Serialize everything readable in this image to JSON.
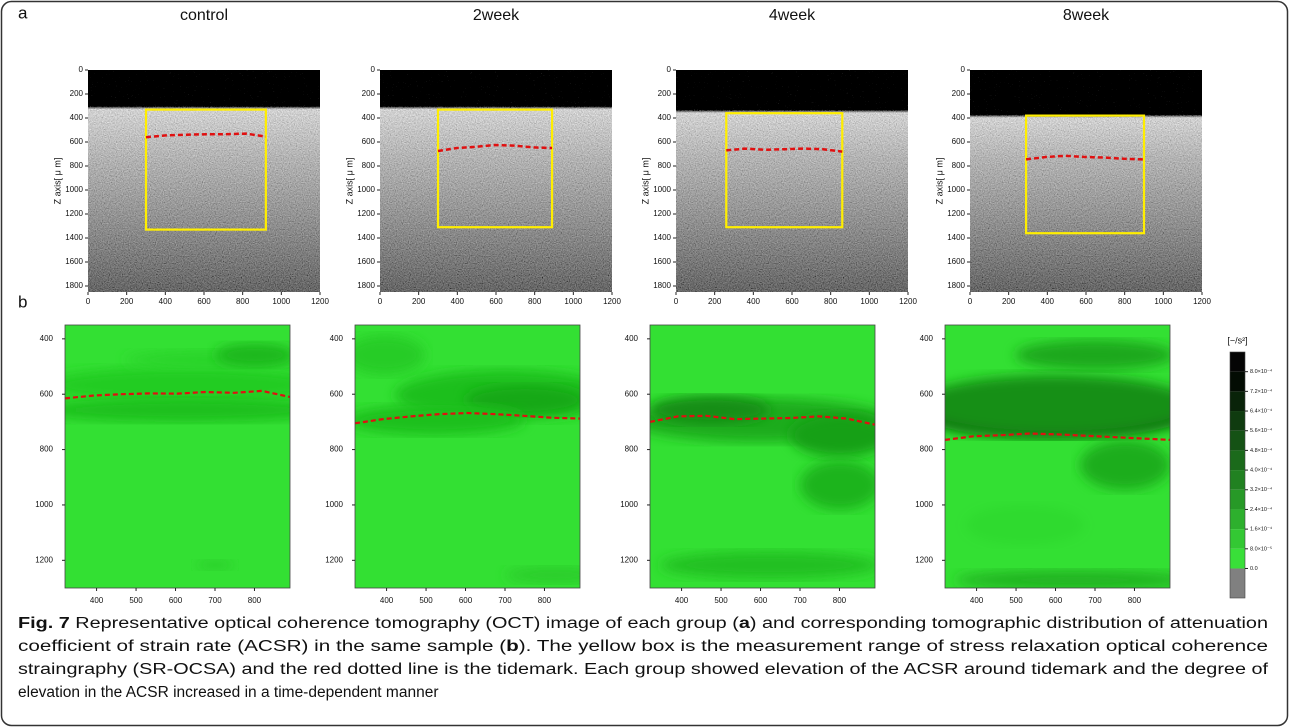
{
  "figure_labels": [
    "a",
    "b"
  ],
  "groups": [
    "control",
    "2week",
    "4week",
    "8week"
  ],
  "oct": {
    "y_label": "Z axis[ μ m]",
    "xlim": [
      0,
      1200
    ],
    "ylim": [
      0,
      1850
    ],
    "xticks": [
      0,
      200,
      400,
      600,
      800,
      1000,
      1200
    ],
    "yticks": [
      0,
      200,
      400,
      600,
      800,
      1000,
      1200,
      1400,
      1600,
      1800
    ]
  },
  "acsr": {
    "xlim": [
      320,
      890
    ],
    "ylim": [
      350,
      1300
    ],
    "xticks": [
      400,
      500,
      600,
      700,
      800
    ],
    "yticks": [
      400,
      600,
      800,
      1000,
      1200
    ]
  },
  "colorbar": {
    "unit": "[−/s²]",
    "lim": [
      -0.00012,
      0.00088
    ],
    "ticks": [
      {
        "value": 0.0008,
        "label": "8.0×10⁻⁴"
      },
      {
        "value": 0.00072,
        "label": "7.2×10⁻⁴"
      },
      {
        "value": 0.00064,
        "label": "6.4×10⁻⁴"
      },
      {
        "value": 0.00056,
        "label": "5.6×10⁻⁴"
      },
      {
        "value": 0.00048,
        "label": "4.8×10⁻⁴"
      },
      {
        "value": 0.0004,
        "label": "4.0×10⁻⁴"
      },
      {
        "value": 0.00032,
        "label": "3.2×10⁻⁴"
      },
      {
        "value": 0.00024,
        "label": "2.4×10⁻⁴"
      },
      {
        "value": 0.00016,
        "label": "1.6×10⁻⁴"
      },
      {
        "value": 8e-05,
        "label": "8.0×10⁻⁵"
      },
      {
        "value": 0,
        "label": "0.0"
      }
    ]
  },
  "caption": {
    "lines": [
      [
        {
          "text": "Fig. 7",
          "bold": true
        },
        {
          "text": " Representative optical coherence tomography (OCT) image of each group ("
        },
        {
          "text": "a",
          "bold": true
        },
        {
          "text": ") and corresponding tomographic distribution of attenuation"
        }
      ],
      [
        {
          "text": "coefficient of strain rate (ACSR) in the same sample ("
        },
        {
          "text": "b",
          "bold": true
        },
        {
          "text": "). The yellow box is the measurement range of stress relaxation optical coherence"
        }
      ],
      [
        {
          "text": "straingraphy (SR-OCSA) and the red dotted line is the tidemark. Each group showed elevation of the ACSR around tidemark and the degree of"
        }
      ],
      [
        {
          "text": "elevation in the ACSR increased in a time-dependent manner"
        }
      ]
    ]
  }
}
